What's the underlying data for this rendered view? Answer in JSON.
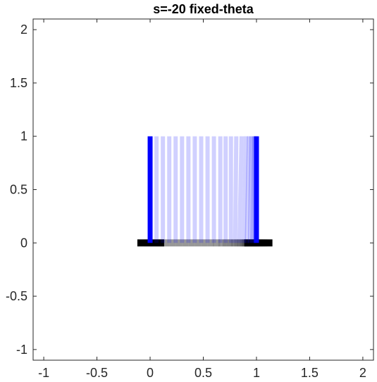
{
  "chart_data": {
    "type": "line",
    "title": "s=-20 fixed-theta",
    "xlabel": "",
    "ylabel": "",
    "xlim": [
      -1.1,
      2.1
    ],
    "ylim": [
      -1.1,
      2.1
    ],
    "xticks": [
      -1,
      -0.5,
      0,
      0.5,
      1,
      1.5,
      2
    ],
    "yticks": [
      -1,
      -0.5,
      0,
      0.5,
      1,
      1.5,
      2
    ],
    "xtick_labels": [
      "-1",
      "-0.5",
      "0",
      "0.5",
      "1",
      "1.5",
      "2"
    ],
    "ytick_labels": [
      "-1",
      "-0.5",
      "0",
      "0.5",
      "1",
      "1.5",
      "2"
    ],
    "grid": false,
    "colors": {
      "pendulum": "#0000ff",
      "cart": "#000000",
      "axes": "#262626",
      "background": "#ffffff"
    },
    "pendulum_frames": {
      "base_x": [
        0.0,
        0.06,
        0.12,
        0.18,
        0.24,
        0.3,
        0.36,
        0.42,
        0.48,
        0.54,
        0.6,
        0.66,
        0.71,
        0.76,
        0.8,
        0.84,
        0.88,
        0.91,
        0.94,
        0.96,
        0.98,
        0.99,
        1.0
      ],
      "tip_x": [
        0.0,
        0.06,
        0.12,
        0.18,
        0.24,
        0.3,
        0.36,
        0.42,
        0.48,
        0.54,
        0.6,
        0.66,
        0.71,
        0.76,
        0.81,
        0.86,
        0.9,
        0.93,
        0.95,
        0.97,
        0.98,
        0.99,
        1.0
      ],
      "y_base": 0,
      "y_tip": 1
    },
    "cart": {
      "x_start": -0.12,
      "x_end": 1.15,
      "y": 0
    }
  }
}
